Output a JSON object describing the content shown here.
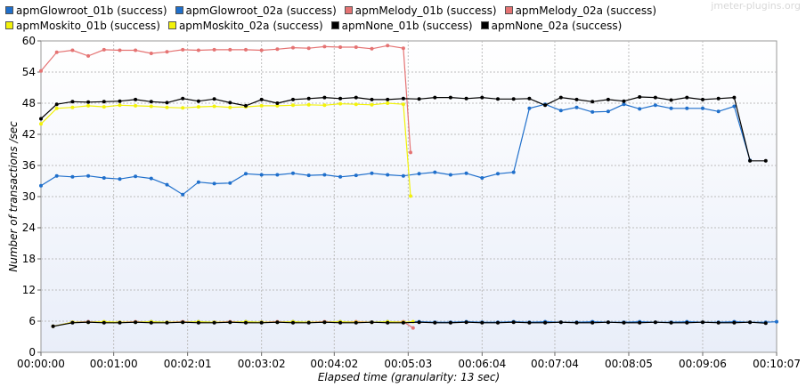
{
  "watermark": "jmeter-plugins.org",
  "chart_data": {
    "type": "line",
    "xlabel": "Elapsed time (granularity: 13 sec)",
    "ylabel": "Number of transactions /sec",
    "xlim": [
      0,
      607
    ],
    "ylim": [
      0,
      60
    ],
    "yticks": [
      0,
      6,
      12,
      18,
      24,
      30,
      36,
      42,
      48,
      54,
      60
    ],
    "xticks": [
      {
        "t": 0,
        "label": "00:00:00"
      },
      {
        "t": 60,
        "label": "00:01:00"
      },
      {
        "t": 121,
        "label": "00:02:01"
      },
      {
        "t": 182,
        "label": "00:03:02"
      },
      {
        "t": 242,
        "label": "00:04:02"
      },
      {
        "t": 303,
        "label": "00:05:03"
      },
      {
        "t": 364,
        "label": "00:06:04"
      },
      {
        "t": 424,
        "label": "00:07:04"
      },
      {
        "t": 485,
        "label": "00:08:05"
      },
      {
        "t": 546,
        "label": "00:09:06"
      },
      {
        "t": 607,
        "label": "00:10:07"
      }
    ],
    "grid": true,
    "legend_position": "top",
    "series": [
      {
        "name": "apmGlowroot_01b (success)",
        "color": "#1f6fcb",
        "x": [
          0,
          13,
          26,
          39,
          52,
          65,
          78,
          91,
          104,
          117,
          130,
          143,
          156,
          169,
          182,
          195,
          208,
          221,
          234,
          247,
          260,
          273,
          286,
          299,
          312,
          325,
          338,
          351,
          364,
          377,
          390,
          403,
          416,
          429,
          442,
          455,
          468,
          481,
          494,
          507,
          520,
          533,
          546,
          559,
          572,
          585
        ],
        "y": [
          32.1,
          34,
          33.8,
          34,
          33.6,
          33.4,
          33.9,
          33.5,
          32.3,
          30.4,
          32.8,
          32.5,
          32.6,
          34.4,
          34.2,
          34.2,
          34.5,
          34.1,
          34.2,
          33.8,
          34.1,
          34.5,
          34.2,
          34,
          34.4,
          34.7,
          34.2,
          34.5,
          33.6,
          34.4,
          34.7,
          47,
          47.8,
          46.6,
          47.2,
          46.3,
          46.4,
          47.8,
          46.9,
          47.6,
          47,
          47,
          47,
          46.4,
          47.4,
          37
        ]
      },
      {
        "name": "apmGlowroot_02a (success)",
        "color": "#1f6fcb",
        "x": [
          10,
          26,
          39,
          52,
          65,
          78,
          91,
          104,
          117,
          130,
          143,
          156,
          169,
          182,
          195,
          208,
          221,
          234,
          247,
          260,
          273,
          286,
          299,
          312,
          325,
          338,
          351,
          364,
          377,
          390,
          403,
          416,
          429,
          442,
          455,
          468,
          481,
          494,
          507,
          520,
          533,
          546,
          559,
          572,
          585,
          598,
          607
        ],
        "y": [
          5,
          5.8,
          5.9,
          5.8,
          5.8,
          5.8,
          5.9,
          5.8,
          5.8,
          5.9,
          5.8,
          5.8,
          5.9,
          5.8,
          5.8,
          5.9,
          5.8,
          5.8,
          5.9,
          5.8,
          5.8,
          5.9,
          5.8,
          5.9,
          5.8,
          5.8,
          5.9,
          5.8,
          5.8,
          5.9,
          5.8,
          5.9,
          5.8,
          5.8,
          5.9,
          5.8,
          5.8,
          5.9,
          5.8,
          5.8,
          5.9,
          5.8,
          5.8,
          5.9,
          5.8,
          5.8,
          5.9
        ]
      },
      {
        "name": "apmMelody_01b (success)",
        "color": "#e57373",
        "x": [
          0,
          13,
          26,
          39,
          52,
          65,
          78,
          91,
          104,
          117,
          130,
          143,
          156,
          169,
          182,
          195,
          208,
          221,
          234,
          247,
          260,
          273,
          286,
          299,
          305
        ],
        "y": [
          54.2,
          57.8,
          58.2,
          57.1,
          58.3,
          58.2,
          58.2,
          57.6,
          57.9,
          58.3,
          58.2,
          58.3,
          58.3,
          58.3,
          58.2,
          58.4,
          58.7,
          58.6,
          58.9,
          58.8,
          58.8,
          58.5,
          59.1,
          58.6,
          38.5
        ]
      },
      {
        "name": "apmMelody_02a (success)",
        "color": "#e57373",
        "x": [
          10,
          26,
          39,
          52,
          65,
          78,
          91,
          104,
          117,
          130,
          143,
          156,
          169,
          182,
          195,
          208,
          221,
          234,
          247,
          260,
          273,
          286,
          299,
          307
        ],
        "y": [
          5,
          5.8,
          5.9,
          5.8,
          5.8,
          5.9,
          5.8,
          5.8,
          5.9,
          5.8,
          5.8,
          5.9,
          5.8,
          5.8,
          5.9,
          5.8,
          5.8,
          5.9,
          5.8,
          5.9,
          5.8,
          5.8,
          5.9,
          4.7
        ]
      },
      {
        "name": "apmMoskito_01b (success)",
        "color": "#f2f20a",
        "x": [
          0,
          13,
          26,
          39,
          52,
          65,
          78,
          91,
          104,
          117,
          130,
          143,
          156,
          169,
          182,
          195,
          208,
          221,
          234,
          247,
          260,
          273,
          286,
          299,
          305
        ],
        "y": [
          44,
          47,
          47.2,
          47.5,
          47.3,
          47.6,
          47.5,
          47.4,
          47.2,
          47.1,
          47.3,
          47.4,
          47.2,
          47.3,
          47.5,
          47.5,
          47.6,
          47.7,
          47.6,
          47.9,
          47.8,
          47.7,
          48,
          47.8,
          30.1
        ]
      },
      {
        "name": "apmMoskito_02a (success)",
        "color": "#f2f20a",
        "x": [
          10,
          26,
          39,
          52,
          65,
          78,
          91,
          104,
          117,
          130,
          143,
          156,
          169,
          182,
          195,
          208,
          221,
          234,
          247,
          260,
          273,
          286,
          299,
          307
        ],
        "y": [
          5,
          5.8,
          5.8,
          5.9,
          5.8,
          5.8,
          5.9,
          5.8,
          5.8,
          5.9,
          5.8,
          5.8,
          5.9,
          5.8,
          5.8,
          5.9,
          5.8,
          5.8,
          5.9,
          5.8,
          5.8,
          5.9,
          5.8,
          5.9
        ]
      },
      {
        "name": "apmNone_01b (success)",
        "color": "#000000",
        "x": [
          0,
          13,
          26,
          39,
          52,
          65,
          78,
          91,
          104,
          117,
          130,
          143,
          156,
          169,
          182,
          195,
          208,
          221,
          234,
          247,
          260,
          273,
          286,
          299,
          312,
          325,
          338,
          351,
          364,
          377,
          390,
          403,
          416,
          429,
          442,
          455,
          468,
          481,
          494,
          507,
          520,
          533,
          546,
          559,
          572,
          585,
          598
        ],
        "y": [
          45,
          47.8,
          48.3,
          48.2,
          48.3,
          48.4,
          48.7,
          48.3,
          48.1,
          48.9,
          48.4,
          48.8,
          48.1,
          47.5,
          48.7,
          48,
          48.7,
          48.9,
          49.1,
          48.9,
          49.1,
          48.7,
          48.7,
          48.9,
          48.8,
          49.1,
          49.1,
          48.9,
          49.1,
          48.8,
          48.8,
          48.9,
          47.6,
          49.1,
          48.7,
          48.3,
          48.7,
          48.4,
          49.2,
          49.1,
          48.6,
          49.1,
          48.7,
          48.9,
          49.1,
          36.9,
          36.9
        ]
      },
      {
        "name": "apmNone_02a (success)",
        "color": "#000000",
        "x": [
          10,
          26,
          39,
          52,
          65,
          78,
          91,
          104,
          117,
          130,
          143,
          156,
          169,
          182,
          195,
          208,
          221,
          234,
          247,
          260,
          273,
          286,
          299,
          312,
          325,
          338,
          351,
          364,
          377,
          390,
          403,
          416,
          429,
          442,
          455,
          468,
          481,
          494,
          507,
          520,
          533,
          546,
          559,
          572,
          585,
          598
        ],
        "y": [
          5,
          5.7,
          5.8,
          5.7,
          5.7,
          5.8,
          5.7,
          5.7,
          5.8,
          5.7,
          5.7,
          5.8,
          5.7,
          5.7,
          5.8,
          5.7,
          5.7,
          5.8,
          5.7,
          5.7,
          5.8,
          5.7,
          5.7,
          5.8,
          5.7,
          5.7,
          5.8,
          5.7,
          5.7,
          5.8,
          5.7,
          5.7,
          5.8,
          5.7,
          5.7,
          5.8,
          5.7,
          5.7,
          5.8,
          5.7,
          5.7,
          5.8,
          5.7,
          5.7,
          5.8,
          5.6
        ]
      }
    ]
  }
}
